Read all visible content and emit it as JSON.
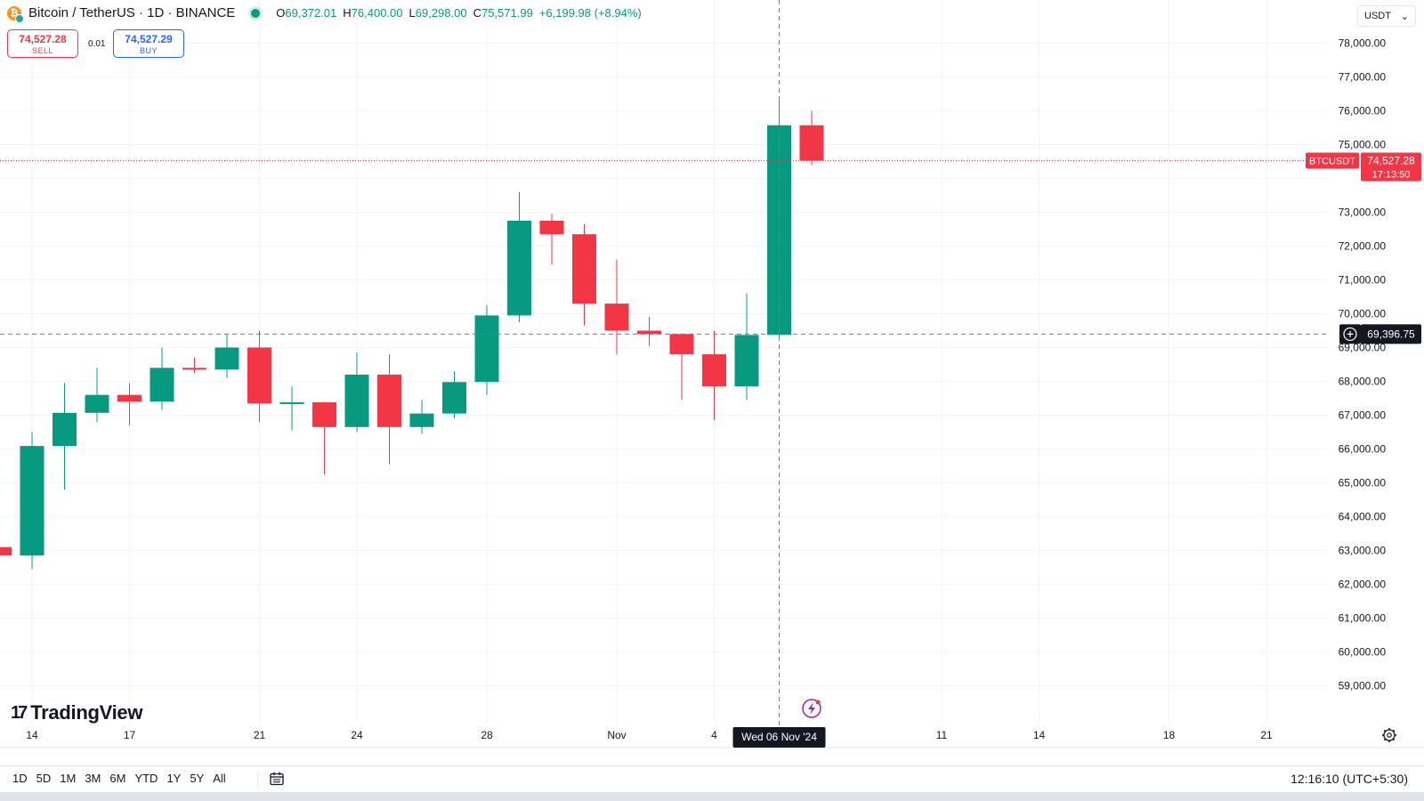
{
  "header": {
    "title": "Bitcoin / TetherUS · 1D · BINANCE",
    "ohlc": {
      "o_key": "O",
      "o": "69,372.01",
      "h_key": "H",
      "h": "76,400.00",
      "l_key": "L",
      "l": "69,298.00",
      "c_key": "C",
      "c": "75,571.99",
      "change": "+6,199.98 (+8.94%)"
    }
  },
  "trade": {
    "sell_price": "74,527.28",
    "sell_label": "SELL",
    "spread": "0.01",
    "buy_price": "74,527.29",
    "buy_label": "BUY"
  },
  "currency": {
    "selected": "USDT",
    "chevron": "⌄"
  },
  "price_labels": {
    "symbol": "BTCUSDT",
    "last_price": "74,527.28",
    "countdown": "17:13:50",
    "crosshair_price": "69,396.75",
    "crosshair_date": "Wed 06 Nov '24"
  },
  "logo": {
    "mark": "17",
    "text": "TradingView"
  },
  "toolbar": {
    "ranges": [
      "1D",
      "5D",
      "1M",
      "3M",
      "6M",
      "YTD",
      "1Y",
      "5Y",
      "All"
    ],
    "clock": "12:16:10 (UTC+5:30)"
  },
  "icons": {
    "coin": "bitcoin-icon",
    "calendar": "calendar-icon",
    "settings": "settings-gear-icon",
    "lightning": "lightning-event-icon",
    "plus": "plus-circle-icon"
  },
  "colors": {
    "up": "#089981",
    "down": "#f23645",
    "text": "#131722",
    "grid": "#f0f3fa",
    "crosshair_label_bg": "#131722",
    "event_icon": "#9c27b0"
  },
  "chart_data": {
    "type": "candlestick",
    "symbol": "BTCUSDT",
    "interval": "1D",
    "y_axis_ticks": [
      "59,000.00",
      "60,000.00",
      "61,000.00",
      "62,000.00",
      "63,000.00",
      "64,000.00",
      "65,000.00",
      "66,000.00",
      "67,000.00",
      "68,000.00",
      "69,000.00",
      "70,000.00",
      "71,000.00",
      "72,000.00",
      "73,000.00",
      "75,000.00",
      "76,000.00",
      "77,000.00",
      "78,000.00"
    ],
    "x_axis_labels": [
      {
        "date": "2024-10-14",
        "label": "14"
      },
      {
        "date": "2024-10-17",
        "label": "17"
      },
      {
        "date": "2024-10-21",
        "label": "21"
      },
      {
        "date": "2024-10-24",
        "label": "24"
      },
      {
        "date": "2024-10-28",
        "label": "28"
      },
      {
        "date": "2024-11-01",
        "label": "Nov"
      },
      {
        "date": "2024-11-04",
        "label": "4"
      },
      {
        "date": "2024-11-11",
        "label": "11"
      },
      {
        "date": "2024-11-14",
        "label": "14"
      },
      {
        "date": "2024-11-18",
        "label": "18"
      },
      {
        "date": "2024-11-21",
        "label": "21"
      }
    ],
    "ylim": [
      58300,
      78800
    ],
    "xlim": [
      "2024-10-13",
      "2024-11-25"
    ],
    "grid": true,
    "last_price": 74527.28,
    "crosshair_price": 69396.75,
    "crosshair_date": "2024-11-06",
    "candles": [
      {
        "date": "2024-10-13",
        "o": 63100,
        "h": 63300,
        "l": 62700,
        "c": 62850
      },
      {
        "date": "2024-10-14",
        "o": 62850,
        "h": 66500,
        "l": 62450,
        "c": 66090
      },
      {
        "date": "2024-10-15",
        "o": 66090,
        "h": 67950,
        "l": 64800,
        "c": 67070
      },
      {
        "date": "2024-10-16",
        "o": 67070,
        "h": 68400,
        "l": 66800,
        "c": 67600
      },
      {
        "date": "2024-10-17",
        "o": 67600,
        "h": 67950,
        "l": 66700,
        "c": 67400
      },
      {
        "date": "2024-10-18",
        "o": 67400,
        "h": 69000,
        "l": 67150,
        "c": 68400
      },
      {
        "date": "2024-10-19",
        "o": 68400,
        "h": 68700,
        "l": 68250,
        "c": 68350
      },
      {
        "date": "2024-10-20",
        "o": 68350,
        "h": 69400,
        "l": 68100,
        "c": 69000
      },
      {
        "date": "2024-10-21",
        "o": 69000,
        "h": 69500,
        "l": 66800,
        "c": 67350
      },
      {
        "date": "2024-10-22",
        "o": 67350,
        "h": 67850,
        "l": 66550,
        "c": 67380
      },
      {
        "date": "2024-10-23",
        "o": 67380,
        "h": 67400,
        "l": 65250,
        "c": 66650
      },
      {
        "date": "2024-10-24",
        "o": 66650,
        "h": 68850,
        "l": 66500,
        "c": 68200
      },
      {
        "date": "2024-10-25",
        "o": 68200,
        "h": 68800,
        "l": 65550,
        "c": 66650
      },
      {
        "date": "2024-10-26",
        "o": 66650,
        "h": 67450,
        "l": 66450,
        "c": 67050
      },
      {
        "date": "2024-10-27",
        "o": 67050,
        "h": 68300,
        "l": 66900,
        "c": 67980
      },
      {
        "date": "2024-10-28",
        "o": 67980,
        "h": 70250,
        "l": 67600,
        "c": 69950
      },
      {
        "date": "2024-10-29",
        "o": 69950,
        "h": 73600,
        "l": 69750,
        "c": 72750
      },
      {
        "date": "2024-10-30",
        "o": 72750,
        "h": 72950,
        "l": 71450,
        "c": 72350
      },
      {
        "date": "2024-10-31",
        "o": 72350,
        "h": 72650,
        "l": 69650,
        "c": 70300
      },
      {
        "date": "2024-11-01",
        "o": 70300,
        "h": 71600,
        "l": 68800,
        "c": 69500
      },
      {
        "date": "2024-11-02",
        "o": 69500,
        "h": 69900,
        "l": 69050,
        "c": 69400
      },
      {
        "date": "2024-11-03",
        "o": 69400,
        "h": 69400,
        "l": 67450,
        "c": 68800
      },
      {
        "date": "2024-11-04",
        "o": 68800,
        "h": 69500,
        "l": 66850,
        "c": 67850
      },
      {
        "date": "2024-11-05",
        "o": 67850,
        "h": 70600,
        "l": 67450,
        "c": 69372.01
      },
      {
        "date": "2024-11-06",
        "o": 69372.01,
        "h": 76400,
        "l": 69298,
        "c": 75571.99
      },
      {
        "date": "2024-11-07",
        "o": 75571.99,
        "h": 76000,
        "l": 74400,
        "c": 74527.28
      }
    ]
  }
}
